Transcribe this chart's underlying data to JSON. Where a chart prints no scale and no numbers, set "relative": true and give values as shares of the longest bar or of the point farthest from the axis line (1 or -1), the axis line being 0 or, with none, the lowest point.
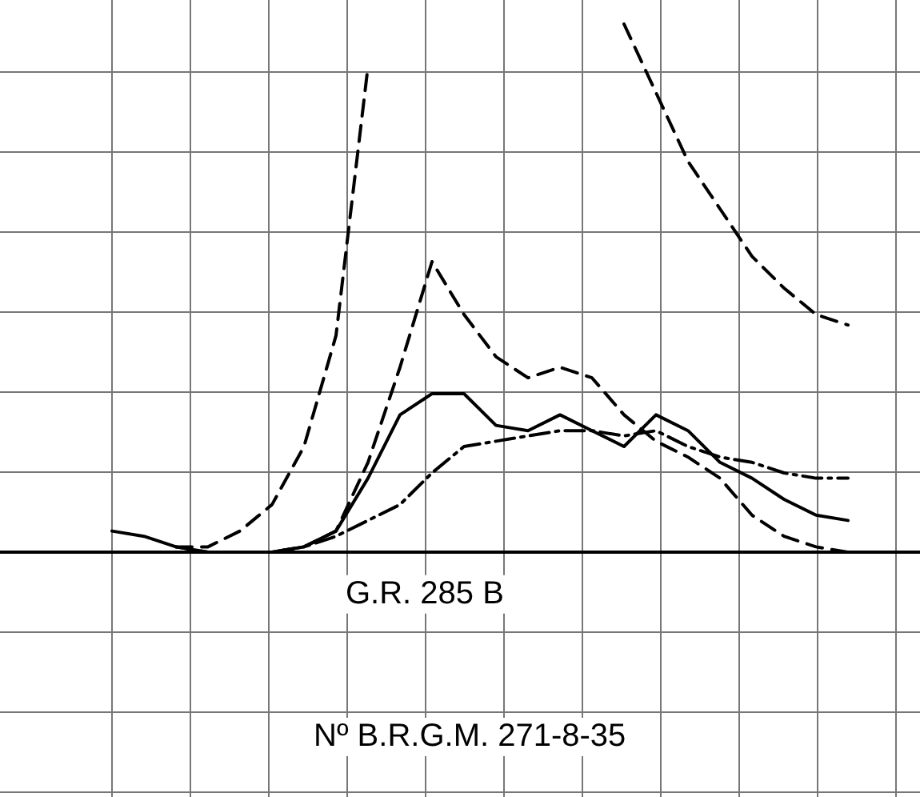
{
  "chart_data": {
    "type": "line",
    "relative": true,
    "grid": true,
    "marker": "none",
    "legend": false,
    "categories": [
      null,
      null,
      null,
      null,
      null,
      null,
      null,
      null,
      null,
      null,
      null,
      null,
      null,
      null,
      null,
      null,
      null,
      null,
      null,
      null,
      null,
      null,
      null,
      null
    ],
    "series": [
      {
        "color": "#000000",
        "line_style": "solid",
        "values": [
          0.04,
          0.03,
          0.01,
          0,
          0,
          0,
          0.01,
          0.04,
          0.14,
          0.26,
          0.3,
          0.3,
          0.24,
          0.23,
          0.26,
          0.23,
          0.2,
          0.26,
          0.23,
          0.17,
          0.14,
          0.1,
          0.07,
          0.06
        ]
      },
      {
        "color": "#000000",
        "line_style": "dashed",
        "values": [
          null,
          null,
          0.01,
          0,
          0,
          0,
          0.01,
          0.04,
          0.17,
          0.35,
          0.55,
          0.45,
          0.37,
          0.33,
          0.35,
          0.33,
          0.26,
          0.21,
          0.18,
          0.14,
          0.07,
          0.03,
          0.01,
          0
        ]
      },
      {
        "color": "#000000",
        "line_style": "dotted",
        "values": [
          null,
          null,
          0,
          0,
          0,
          0,
          0.01,
          0.03,
          0.06,
          0.09,
          0.15,
          0.2,
          0.21,
          0.22,
          0.23,
          0.23,
          0.22,
          0.23,
          0.2,
          0.18,
          0.17,
          0.15,
          0.14,
          0.14
        ]
      },
      {
        "color": "#000000",
        "line_style": "dashed",
        "values": [
          null,
          null,
          0.01,
          0.01,
          0.04,
          0.09,
          0.2,
          0.41,
          0.92,
          null,
          null,
          null,
          null,
          null,
          null,
          null,
          null,
          null,
          null,
          null,
          null,
          null,
          null,
          null
        ]
      },
      {
        "color": "#000000",
        "line_style": "dashed",
        "values": [
          null,
          null,
          null,
          null,
          null,
          null,
          null,
          null,
          null,
          null,
          null,
          null,
          null,
          null,
          null,
          null,
          1,
          0.87,
          0.74,
          0.65,
          0.56,
          0.5,
          0.45,
          0.43
        ]
      }
    ],
    "annotations": [
      "G.R. 285 B",
      "Nº B.R.G.M. 271-8-35"
    ]
  }
}
